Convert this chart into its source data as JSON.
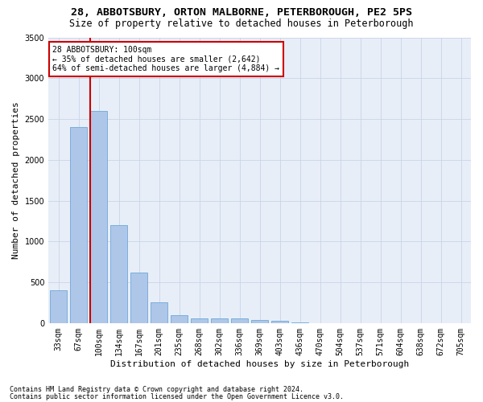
{
  "title1": "28, ABBOTSBURY, ORTON MALBORNE, PETERBOROUGH, PE2 5PS",
  "title2": "Size of property relative to detached houses in Peterborough",
  "xlabel": "Distribution of detached houses by size in Peterborough",
  "ylabel": "Number of detached properties",
  "categories": [
    "33sqm",
    "67sqm",
    "100sqm",
    "134sqm",
    "167sqm",
    "201sqm",
    "235sqm",
    "268sqm",
    "302sqm",
    "336sqm",
    "369sqm",
    "403sqm",
    "436sqm",
    "470sqm",
    "504sqm",
    "537sqm",
    "571sqm",
    "604sqm",
    "638sqm",
    "672sqm",
    "705sqm"
  ],
  "values": [
    400,
    2400,
    2600,
    1200,
    620,
    250,
    100,
    60,
    55,
    55,
    40,
    30,
    5,
    2,
    2,
    1,
    1,
    0,
    0,
    0,
    0
  ],
  "bar_color": "#aec6e8",
  "bar_edge_color": "#5a9fd4",
  "vline_index": 2,
  "vline_color": "#cc0000",
  "annotation_title": "28 ABBOTSBURY: 100sqm",
  "annotation_line1": "← 35% of detached houses are smaller (2,642)",
  "annotation_line2": "64% of semi-detached houses are larger (4,884) →",
  "annotation_box_color": "#cc0000",
  "ylim": [
    0,
    3500
  ],
  "yticks": [
    0,
    500,
    1000,
    1500,
    2000,
    2500,
    3000,
    3500
  ],
  "footnote1": "Contains HM Land Registry data © Crown copyright and database right 2024.",
  "footnote2": "Contains public sector information licensed under the Open Government Licence v3.0.",
  "bg_color": "#ffffff",
  "plot_bg_color": "#e8eef8",
  "grid_color": "#c8d4e8",
  "title1_fontsize": 9.5,
  "title2_fontsize": 8.5,
  "xlabel_fontsize": 8,
  "ylabel_fontsize": 8,
  "tick_fontsize": 7,
  "annot_fontsize": 7,
  "footnote_fontsize": 6
}
